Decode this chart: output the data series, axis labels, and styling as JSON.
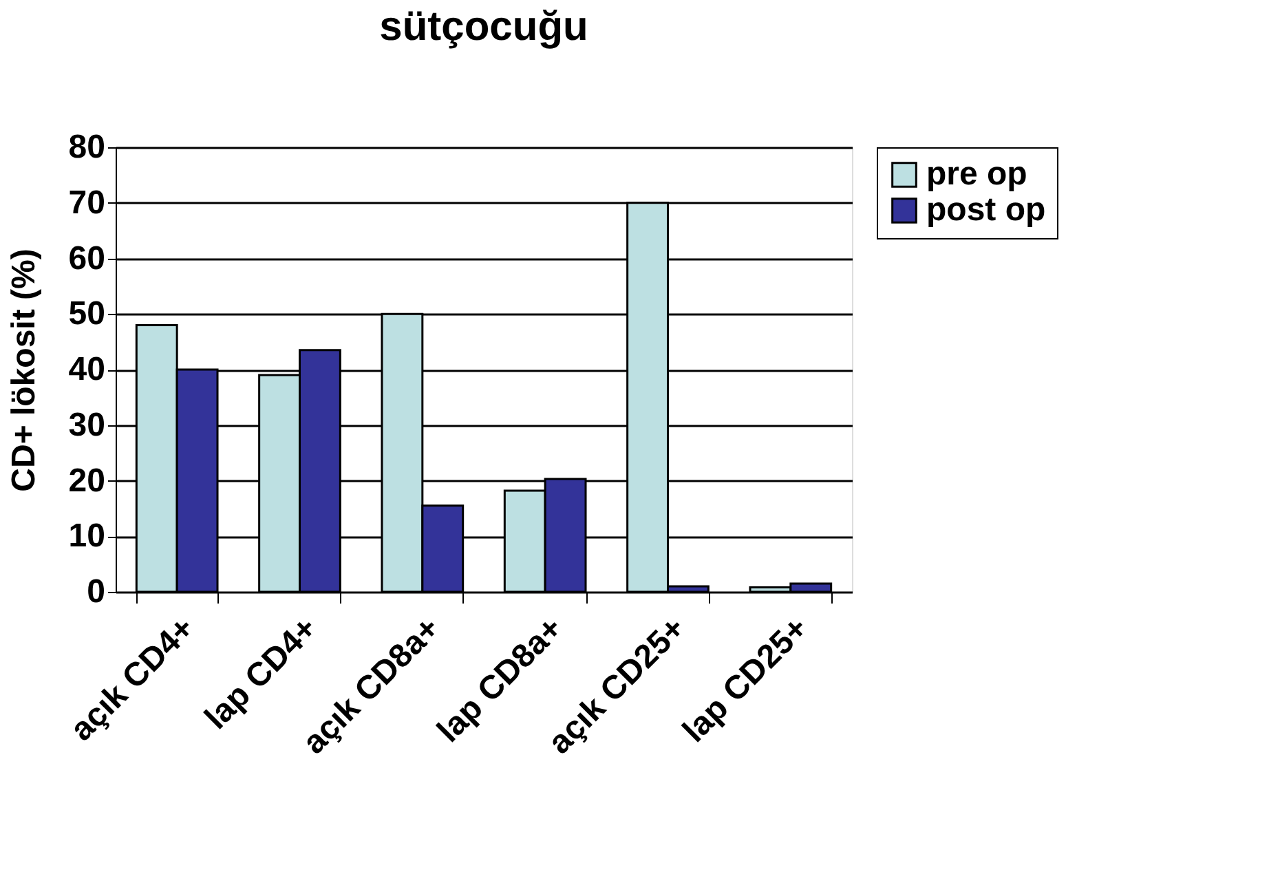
{
  "chart_data": {
    "type": "bar",
    "title": "sütçocuğu",
    "ylabel": "CD+  lökosit (%)",
    "categories": [
      "açık CD4+",
      "lap CD4+",
      "açık CD8a+",
      "lap CD8a+",
      "açık CD25+",
      "lap CD25+"
    ],
    "series": [
      {
        "name": "pre op",
        "color": "#bde0e2",
        "values": [
          48,
          39,
          50,
          18.2,
          70,
          0.8
        ]
      },
      {
        "name": "post op",
        "color": "#333399",
        "values": [
          40,
          43.5,
          15.5,
          20.3,
          1,
          1.5
        ]
      }
    ],
    "ylim": [
      0,
      80
    ],
    "yticks": [
      0,
      10,
      20,
      30,
      40,
      50,
      60,
      70,
      80
    ],
    "grid": "y",
    "legend": "right"
  }
}
